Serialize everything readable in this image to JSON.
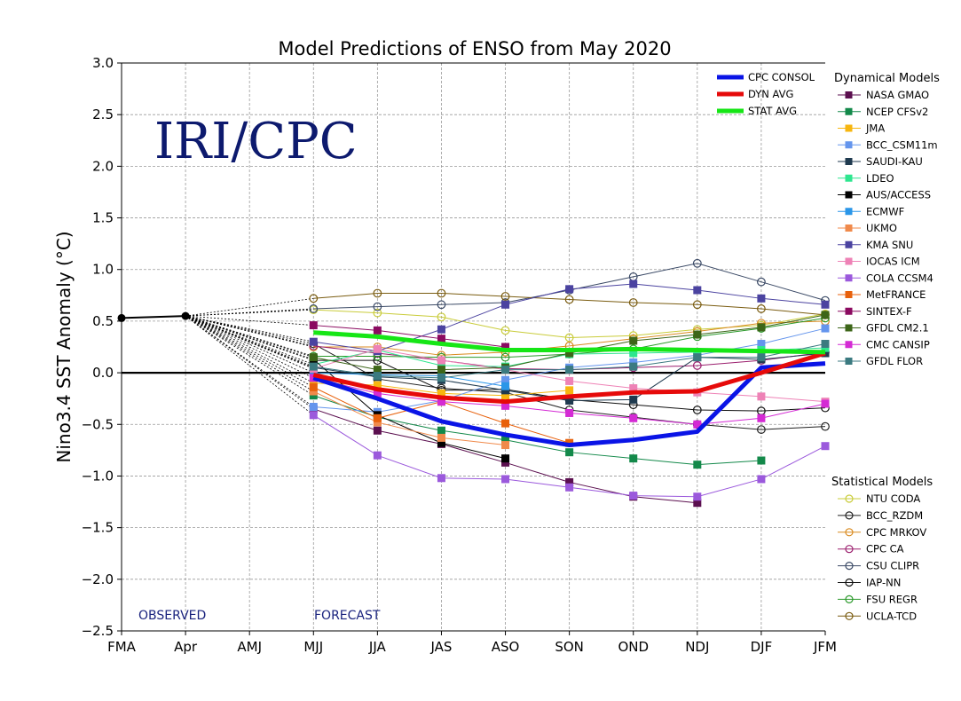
{
  "chart_data": {
    "type": "line",
    "title": "Model Predictions of ENSO from May 2020",
    "ylabel": "Nino3.4 SST Anomaly (°C)",
    "xlabel": "",
    "watermark": "IRI/CPC",
    "observed_label": "OBSERVED",
    "forecast_label": "FORECAST",
    "categories": [
      "FMA",
      "Apr",
      "AMJ",
      "MJJ",
      "JJA",
      "JAS",
      "ASO",
      "SON",
      "OND",
      "NDJ",
      "DJF",
      "JFM"
    ],
    "ylim": [
      -2.5,
      3.0
    ],
    "yticks": [
      "3.0",
      "2.5",
      "2.0",
      "1.5",
      "1.0",
      "0.5",
      "0.0",
      "−0.5",
      "−1.0",
      "−1.5",
      "−2.0",
      "−2.5"
    ],
    "ytick_values": [
      3.0,
      2.5,
      2.0,
      1.5,
      1.0,
      0.5,
      0.0,
      -0.5,
      -1.0,
      -1.5,
      -2.0,
      -2.5
    ],
    "grid": true,
    "zero_line": true,
    "observed": {
      "x": [
        0,
        1
      ],
      "values": [
        0.53,
        0.55
      ],
      "color": "#000000"
    },
    "averages_legend": [
      {
        "name": "CPC CONSOL",
        "color": "#0a14e6"
      },
      {
        "name": "DYN AVG",
        "color": "#e60a0a"
      },
      {
        "name": "STAT AVG",
        "color": "#16e616"
      }
    ],
    "averages": [
      {
        "name": "CPC CONSOL",
        "color": "#0a14e6",
        "values": [
          -0.05,
          -0.25,
          -0.47,
          -0.6,
          -0.7,
          -0.65,
          -0.57,
          0.05,
          0.09
        ]
      },
      {
        "name": "DYN AVG",
        "color": "#e60a0a",
        "values": [
          -0.02,
          -0.16,
          -0.24,
          -0.28,
          -0.23,
          -0.19,
          -0.18,
          0.0,
          0.19
        ]
      },
      {
        "name": "STAT AVG",
        "color": "#16e616",
        "values": [
          0.39,
          0.35,
          0.28,
          0.22,
          0.22,
          0.23,
          0.22,
          0.21,
          0.2
        ]
      }
    ],
    "dynamical_heading": "Dynamical Models",
    "statistical_heading": "Statistical Models",
    "dynamical": [
      {
        "name": "NASA GMAO",
        "color": "#5b0f4f",
        "values": [
          -0.35,
          -0.56,
          -0.69,
          -0.87,
          -1.06,
          -1.2,
          -1.26
        ]
      },
      {
        "name": "NCEP CFSv2",
        "color": "#13894a",
        "values": [
          -0.22,
          -0.43,
          -0.56,
          -0.65,
          -0.77,
          -0.83,
          -0.89,
          -0.85
        ]
      },
      {
        "name": "JMA",
        "color": "#f7b60f",
        "values": [
          -0.1,
          -0.12,
          -0.2,
          -0.22,
          -0.17
        ]
      },
      {
        "name": "BCC_CSM11m",
        "color": "#6495ed",
        "values": [
          -0.33,
          -0.38,
          -0.27,
          -0.07,
          0.05,
          0.1,
          0.17,
          0.28,
          0.43
        ]
      },
      {
        "name": "SAUDI-KAU",
        "color": "#1f3a4f",
        "values": [
          0.05,
          -0.04,
          -0.07,
          -0.17,
          -0.27,
          -0.26,
          0.15,
          0.13,
          0.19
        ]
      },
      {
        "name": "LDEO",
        "color": "#2ee68f",
        "values": [
          0.08,
          0.22,
          0.07,
          0.06,
          0.18,
          0.19,
          0.2,
          0.22,
          0.24
        ]
      },
      {
        "name": "AUS/ACCESS",
        "color": "#000000",
        "values": [
          0.13,
          -0.41,
          -0.68,
          -0.83
        ]
      },
      {
        "name": "ECMWF",
        "color": "#2a96e8",
        "values": [
          0.0,
          -0.02,
          -0.03,
          -0.13
        ]
      },
      {
        "name": "UKMO",
        "color": "#f08a4b",
        "values": [
          -0.18,
          -0.48,
          -0.63,
          -0.7
        ]
      },
      {
        "name": "KMA SNU",
        "color": "#4b43a0",
        "values": [
          0.3,
          0.21,
          0.42,
          0.66,
          0.81,
          0.86,
          0.8,
          0.72,
          0.66
        ]
      },
      {
        "name": "IOCAS ICM",
        "color": "#ee82b6",
        "values": [
          0.04,
          0.23,
          0.12,
          0.03,
          -0.08,
          -0.15,
          -0.19,
          -0.23,
          -0.28
        ]
      },
      {
        "name": "COLA CCSM4",
        "color": "#9b59dc",
        "values": [
          -0.41,
          -0.8,
          -1.02,
          -1.03,
          -1.11,
          -1.19,
          -1.2,
          -1.03,
          -0.71
        ]
      },
      {
        "name": "MetFRANCE",
        "color": "#e8610c",
        "values": [
          -0.14,
          -0.44,
          -0.28,
          -0.49,
          -0.68
        ]
      },
      {
        "name": "SINTEX-F",
        "color": "#8b0a60",
        "values": [
          0.46,
          0.41,
          0.33,
          0.25
        ]
      },
      {
        "name": "GFDL CM2.1",
        "color": "#3d6619",
        "values": [
          0.15,
          0.03,
          0.03,
          0.05,
          0.19,
          0.31,
          0.37,
          0.44,
          0.56
        ]
      },
      {
        "name": "CMC CANSIP",
        "color": "#d42ad4",
        "values": [
          -0.05,
          -0.2,
          -0.28,
          -0.32,
          -0.39,
          -0.44,
          -0.5,
          -0.44,
          -0.3
        ]
      },
      {
        "name": "GFDL FLOR",
        "color": "#3b7a80",
        "values": [
          0.06,
          -0.03,
          -0.05,
          0.03,
          0.03,
          0.06,
          0.15,
          0.15,
          0.28
        ]
      }
    ],
    "statistical": [
      {
        "name": "NTU CODA",
        "color": "#c9cc3a",
        "values": [
          0.61,
          0.58,
          0.54,
          0.41,
          0.34,
          0.36,
          0.42,
          0.46,
          0.57
        ]
      },
      {
        "name": "BCC_RZDM",
        "color": "#222222",
        "values": [
          0.28,
          -0.06,
          -0.15,
          -0.19,
          -0.36,
          -0.43,
          -0.5,
          -0.55,
          -0.52
        ]
      },
      {
        "name": "CPC MRKOV",
        "color": "#d98a1f",
        "values": [
          0.25,
          0.25,
          0.17,
          0.2,
          0.26,
          0.33,
          0.4,
          0.48,
          0.5
        ]
      },
      {
        "name": "CPC CA",
        "color": "#9b1f6e",
        "values": [
          0.26,
          0.19,
          0.12,
          0.04,
          0.03,
          0.05,
          0.07,
          0.12,
          0.2
        ]
      },
      {
        "name": "CSU CLIPR",
        "color": "#3b4a66",
        "values": [
          0.62,
          0.64,
          0.66,
          0.68,
          0.8,
          0.93,
          1.06,
          0.88,
          0.7
        ]
      },
      {
        "name": "IAP-NN",
        "color": "#111111",
        "values": [
          0.12,
          0.12,
          -0.17,
          -0.16,
          -0.26,
          -0.31,
          -0.36,
          -0.37,
          -0.34
        ]
      },
      {
        "name": "FSU REGR",
        "color": "#2b9a2b",
        "values": [
          0.16,
          0.16,
          0.15,
          0.15,
          0.18,
          0.23,
          0.35,
          0.43,
          0.53
        ]
      },
      {
        "name": "UCLA-TCD",
        "color": "#7a5c10",
        "values": [
          0.72,
          0.77,
          0.77,
          0.74,
          0.71,
          0.68,
          0.66,
          0.62,
          0.56
        ]
      }
    ]
  }
}
